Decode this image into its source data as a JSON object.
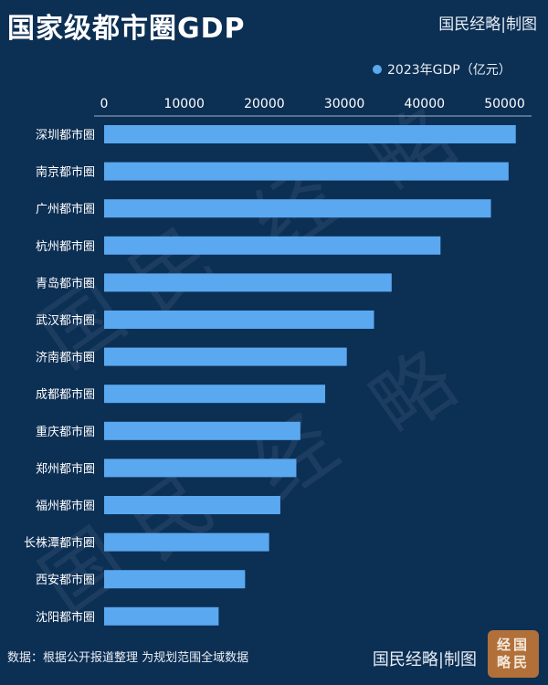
{
  "title": "国家级都市圈GDP",
  "brand": "国民经略|制图",
  "seal_text": "经国略民",
  "watermark": "国民经略",
  "source": "数据：根据公开报道整理 为规划范围全域数据",
  "colors": {
    "background": "#0c2f54",
    "bar": "#5aa8f0",
    "text": "#ffffff",
    "seal": "#b1703a"
  },
  "chart_data": {
    "type": "bar",
    "orientation": "horizontal",
    "categories": [
      "深圳都市圈",
      "南京都市圈",
      "广州都市圈",
      "杭州都市圈",
      "青岛都市圈",
      "武汉都市圈",
      "济南都市圈",
      "成都都市圈",
      "重庆都市圈",
      "郑州都市圈",
      "福州都市圈",
      "长株潭都市圈",
      "西安都市圈",
      "沈阳都市圈"
    ],
    "series": [
      {
        "name": "2023年GDP（亿元）",
        "values": [
          51400,
          50500,
          48300,
          42000,
          35900,
          33700,
          30300,
          27600,
          24500,
          24000,
          22000,
          20600,
          17600,
          14300
        ]
      }
    ],
    "xlim": [
      0,
      52000
    ],
    "xticks": [
      0,
      10000,
      20000,
      30000,
      40000,
      50000
    ],
    "axis_position": "top",
    "legend": "top-right",
    "grid": false
  }
}
